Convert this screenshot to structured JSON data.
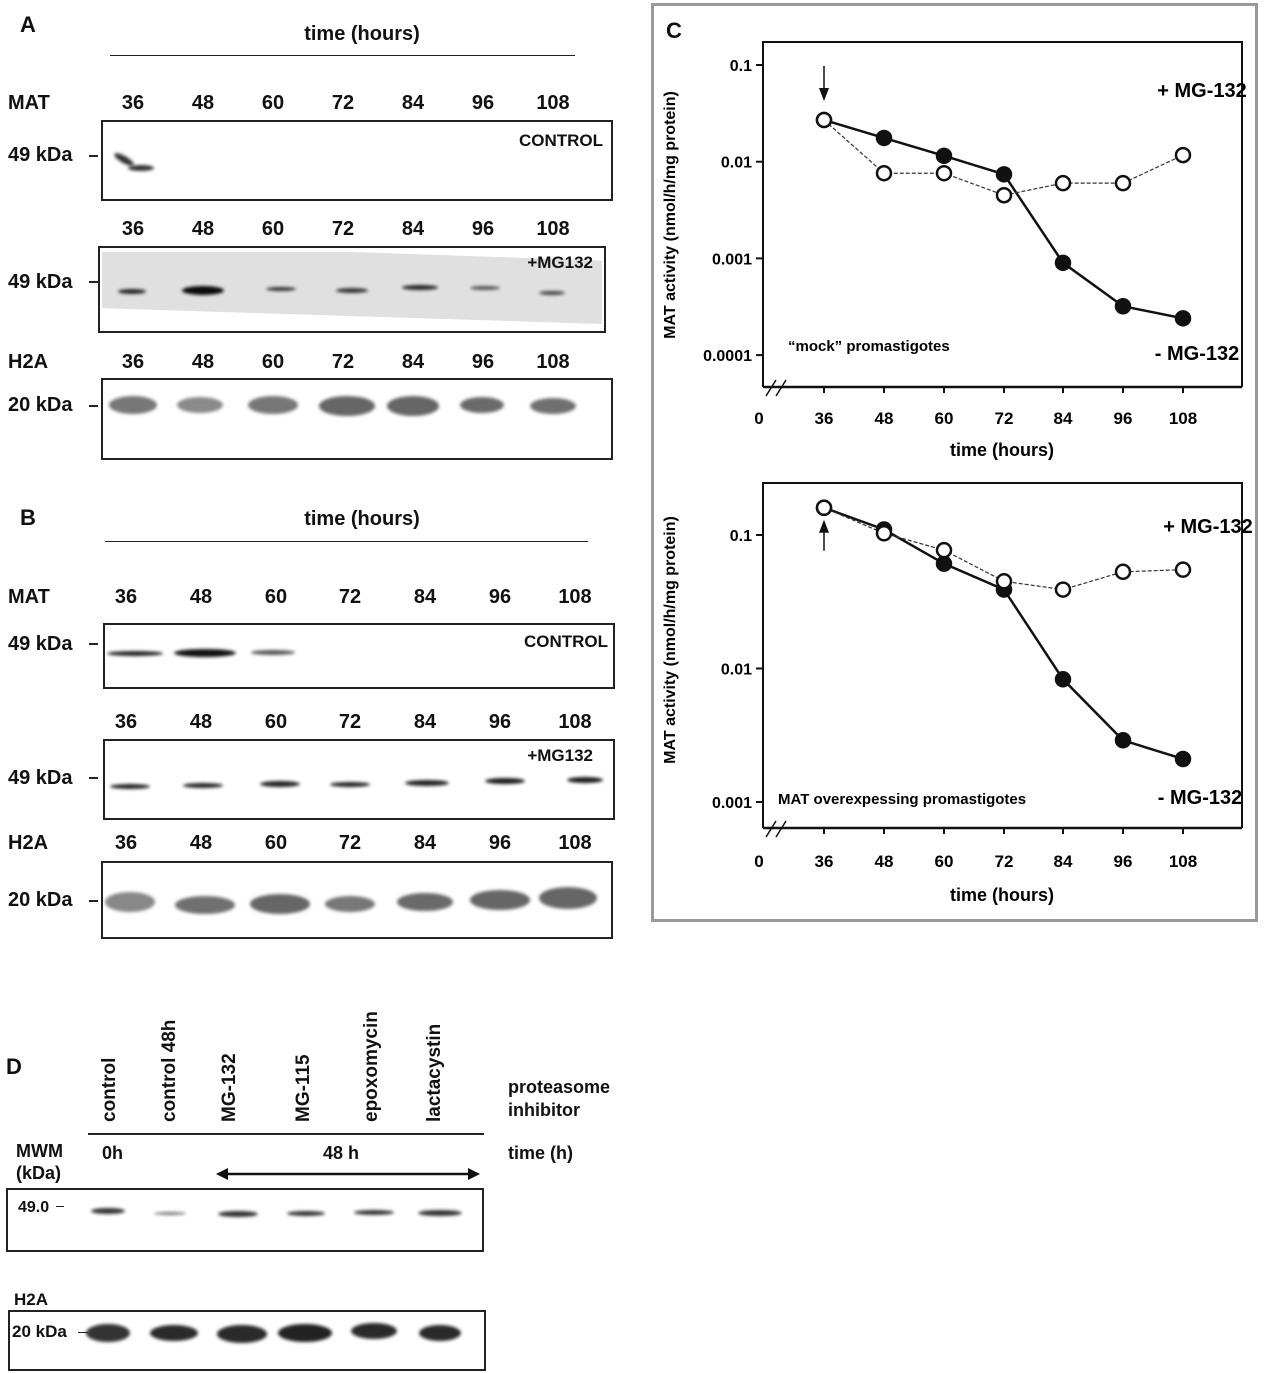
{
  "panel_a": {
    "letter": "A",
    "header": "time (hours)",
    "mat_label": "MAT",
    "h2a_label": "H2A",
    "lanes": [
      "36",
      "48",
      "60",
      "72",
      "84",
      "96",
      "108"
    ],
    "mw_mat": "49 kDa",
    "mw_h2a": "20 kDa",
    "control_label": "CONTROL",
    "mg132_label": "+MG132"
  },
  "panel_b": {
    "letter": "B",
    "header": "time (hours)",
    "mat_label": "MAT",
    "h2a_label": "H2A",
    "lanes": [
      "36",
      "48",
      "60",
      "72",
      "84",
      "96",
      "108"
    ],
    "mw_mat": "49 kDa",
    "mw_h2a": "20 kDa",
    "control_label": "CONTROL",
    "mg132_label": "+MG132"
  },
  "panel_c": {
    "letter": "C"
  },
  "chart_data": [
    {
      "type": "line",
      "ylabel": "MAT activity (nmol/h/mg protein)",
      "xlabel": "time (hours)",
      "x_ticks": [
        "0",
        "36",
        "48",
        "60",
        "72",
        "84",
        "96",
        "108"
      ],
      "y_ticks": [
        "0.1",
        "0.01",
        "0.001",
        "0.0001"
      ],
      "y_scale": "log",
      "ylim": [
        5e-05,
        0.15
      ],
      "x_axis_break": true,
      "annotation": "“mock” promastigotes",
      "arrow_at_x": 36,
      "arrow_direction": "down",
      "x": [
        36,
        48,
        60,
        72,
        84,
        96,
        108
      ],
      "series": [
        {
          "name": "+ MG-132",
          "marker": "open-circle",
          "line": "dashed",
          "values": [
            0.027,
            0.0076,
            0.0076,
            0.0045,
            0.006,
            0.006,
            0.0117
          ]
        },
        {
          "name": "- MG-132",
          "marker": "filled-circle",
          "line": "solid",
          "values": [
            0.027,
            0.0176,
            0.0115,
            0.0074,
            0.0009,
            0.00032,
            0.00024
          ]
        }
      ],
      "grid": false
    },
    {
      "type": "line",
      "ylabel": "MAT activity (nmol/h/mg protein)",
      "xlabel": "time (hours)",
      "x_ticks": [
        "0",
        "36",
        "48",
        "60",
        "72",
        "84",
        "96",
        "108"
      ],
      "y_ticks": [
        "0.1",
        "0.01",
        "0.001"
      ],
      "y_scale": "log",
      "ylim": [
        0.0006,
        0.25
      ],
      "x_axis_break": true,
      "annotation": "MAT overexpessing promastigotes",
      "arrow_at_x": 36,
      "arrow_direction": "up",
      "x": [
        36,
        48,
        60,
        72,
        84,
        96,
        108
      ],
      "series": [
        {
          "name": "+ MG-132",
          "marker": "open-circle",
          "line": "dashed",
          "values": [
            0.16,
            0.103,
            0.077,
            0.045,
            0.039,
            0.053,
            0.055
          ]
        },
        {
          "name": "- MG-132",
          "marker": "filled-circle",
          "line": "solid",
          "values": [
            0.16,
            0.11,
            0.061,
            0.039,
            0.0083,
            0.0029,
            0.0021
          ]
        }
      ],
      "grid": false
    }
  ],
  "panel_d": {
    "letter": "D",
    "lanes": [
      "control",
      "control 48h",
      "MG-132",
      "MG-115",
      "epoxomycin",
      "lactacystin"
    ],
    "inhibitor_label_1": "proteasome",
    "inhibitor_label_2": "inhibitor",
    "mwm_1": "MWM",
    "mwm_2": "(kDa)",
    "time_0": "0h",
    "time_48": "48 h",
    "time_label": "time (h)",
    "mw_mat": "49.0",
    "h2a_label": "H2A",
    "mw_h2a": "20 kDa"
  }
}
